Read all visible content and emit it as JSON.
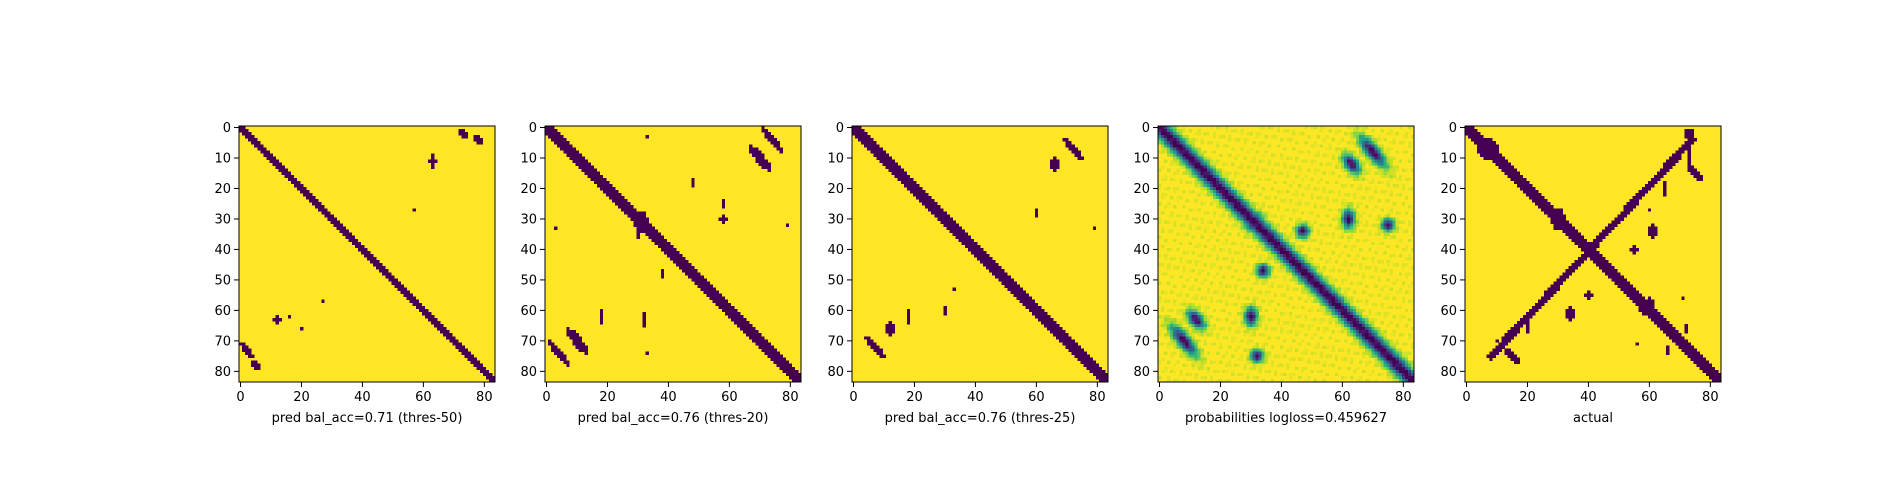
{
  "chart_data": [
    {
      "type": "heatmap",
      "title": "",
      "xlabel": "pred bal_acc=0.71 (thres-50)",
      "ylabel": "",
      "size": 84,
      "colormap": "binary-viridis",
      "colors": {
        "contact": "#440154",
        "no_contact": "#fde725"
      },
      "xticks": [
        0,
        20,
        40,
        60,
        80
      ],
      "yticks": [
        0,
        10,
        20,
        30,
        40,
        50,
        60,
        70,
        80
      ],
      "xlim": [
        -0.5,
        83.5
      ],
      "ylim": [
        83.5,
        -0.5
      ],
      "diag_half_width": 1.3,
      "blobs": [
        [
          73,
          2,
          3.5,
          1.2,
          0.7
        ],
        [
          78,
          5,
          3,
          1.2,
          0.7
        ],
        [
          63,
          12,
          2,
          1.4,
          0
        ],
        [
          62,
          16,
          1,
          1.2,
          0
        ],
        [
          66,
          20,
          0.8,
          0.8,
          0
        ],
        [
          57,
          27,
          0.6,
          0.6,
          0
        ],
        [
          11,
          63,
          2.5,
          1.3,
          0
        ],
        [
          2,
          73,
          2.5,
          1.2,
          0.7
        ],
        [
          4,
          78,
          2.5,
          1.2,
          0.7
        ],
        [
          27,
          57,
          0.6,
          0.6,
          0
        ]
      ]
    },
    {
      "type": "heatmap",
      "title": "",
      "xlabel": "pred bal_acc=0.76 (thres-20)",
      "ylabel": "",
      "size": 84,
      "colormap": "binary-viridis",
      "colors": {
        "contact": "#440154",
        "no_contact": "#fde725"
      },
      "xticks": [
        0,
        20,
        40,
        60,
        80
      ],
      "yticks": [
        0,
        10,
        20,
        30,
        40,
        50,
        60,
        70,
        80
      ],
      "xlim": [
        -0.5,
        83.5
      ],
      "ylim": [
        83.5,
        -0.5
      ],
      "diag_half_width": 2.4,
      "blobs": [
        [
          31,
          31,
          4,
          3,
          0
        ],
        [
          70,
          10,
          7,
          1.8,
          0.7
        ],
        [
          74,
          4,
          7,
          1.4,
          0.7
        ],
        [
          62,
          18,
          2.5,
          1.2,
          0
        ],
        [
          63,
          32,
          2.5,
          1.2,
          0
        ],
        [
          48,
          38,
          2,
          1.2,
          0
        ],
        [
          74,
          33,
          1.2,
          1,
          0
        ],
        [
          35,
          30,
          1.5,
          1,
          0
        ],
        [
          10,
          70,
          7,
          1.8,
          0.7
        ],
        [
          4,
          74,
          7,
          1.4,
          0.7
        ],
        [
          30,
          58,
          2,
          1.4,
          0
        ],
        [
          25,
          58,
          1.5,
          1,
          0
        ],
        [
          32,
          79,
          1,
          1,
          0
        ],
        [
          18,
          48,
          1.5,
          1,
          0
        ],
        [
          3,
          33,
          1,
          0.8,
          0
        ],
        [
          33,
          3,
          1,
          0.8,
          0
        ]
      ]
    },
    {
      "type": "heatmap",
      "title": "",
      "xlabel": "pred bal_acc=0.76 (thres-25)",
      "ylabel": "",
      "size": 84,
      "colormap": "binary-viridis",
      "colors": {
        "contact": "#440154",
        "no_contact": "#fde725"
      },
      "xticks": [
        0,
        20,
        40,
        60,
        80
      ],
      "yticks": [
        0,
        10,
        20,
        30,
        40,
        50,
        60,
        70,
        80
      ],
      "xlim": [
        -0.5,
        83.5
      ],
      "ylim": [
        83.5,
        -0.5
      ],
      "diag_half_width": 2.1,
      "blobs": [
        [
          30,
          30,
          3,
          2,
          0
        ],
        [
          72,
          7,
          6,
          1.5,
          0.7
        ],
        [
          66,
          12,
          3,
          1.5,
          0
        ],
        [
          62,
          18,
          2.5,
          1.2,
          0
        ],
        [
          60,
          30,
          2,
          1,
          0
        ],
        [
          7,
          72,
          6,
          1.5,
          0.7
        ],
        [
          12,
          66,
          3,
          1.5,
          0
        ],
        [
          28,
          60,
          2,
          1,
          0
        ],
        [
          33,
          79,
          1,
          1,
          0
        ],
        [
          53,
          33,
          1,
          0.8,
          0
        ]
      ]
    },
    {
      "type": "heatmap",
      "title": "",
      "xlabel": "probabilities logloss=0.459627",
      "ylabel": "",
      "size": 84,
      "colormap": "viridis",
      "vrange": [
        0,
        1
      ],
      "xticks": [
        0,
        20,
        40,
        60,
        80
      ],
      "yticks": [
        0,
        10,
        20,
        30,
        40,
        50,
        60,
        70,
        80
      ],
      "xlim": [
        -0.5,
        83.5
      ],
      "ylim": [
        83.5,
        -0.5
      ],
      "diag_half_width": 2.5,
      "blobs": [
        [
          63,
          12,
          3.5,
          2,
          0.7
        ],
        [
          70,
          8,
          6,
          2,
          0.7
        ],
        [
          62,
          30,
          3,
          2,
          0
        ],
        [
          75,
          32,
          2,
          2,
          0
        ],
        [
          47,
          34,
          2,
          2,
          0
        ],
        [
          12,
          63,
          3.5,
          2,
          0.7
        ],
        [
          8,
          70,
          6,
          2,
          0.7
        ],
        [
          30,
          62,
          3,
          2,
          0
        ],
        [
          32,
          75,
          2,
          2,
          0
        ],
        [
          34,
          47,
          2,
          2,
          0
        ],
        [
          31,
          31,
          3,
          3,
          0
        ]
      ]
    },
    {
      "type": "heatmap",
      "title": "",
      "xlabel": "actual",
      "ylabel": "",
      "size": 84,
      "colormap": "binary-viridis",
      "colors": {
        "contact": "#440154",
        "no_contact": "#fde725"
      },
      "xticks": [
        0,
        20,
        40,
        60,
        80
      ],
      "yticks": [
        0,
        10,
        20,
        30,
        40,
        50,
        60,
        70,
        80
      ],
      "xlim": [
        -0.5,
        83.5
      ],
      "ylim": [
        83.5,
        -0.5
      ],
      "diag_half_width": 1.8,
      "antidiag": {
        "from": [
          4,
          74
        ],
        "to": [
          75,
          8
        ],
        "half_width": 1.4
      },
      "blobs": [
        [
          30,
          30,
          4,
          3,
          0
        ],
        [
          59,
          59,
          3,
          3,
          0
        ],
        [
          7,
          7,
          4,
          4,
          0
        ],
        [
          46,
          46,
          3,
          2,
          0
        ],
        [
          75,
          15,
          4,
          1.5,
          0.7
        ],
        [
          65,
          20,
          3,
          1.2,
          0
        ],
        [
          61,
          34,
          2.5,
          1.5,
          0
        ],
        [
          55,
          40,
          1.5,
          1.5,
          0
        ],
        [
          58,
          60,
          3,
          2,
          0
        ],
        [
          70,
          10,
          1,
          1,
          0
        ],
        [
          15,
          75,
          4,
          1.5,
          0.7
        ],
        [
          20,
          65,
          3,
          1.2,
          0
        ],
        [
          34,
          61,
          2.5,
          1.5,
          0
        ],
        [
          40,
          55,
          1.5,
          1.5,
          0
        ],
        [
          2,
          73,
          2,
          2,
          0
        ],
        [
          10,
          73,
          4,
          1.2,
          0
        ],
        [
          27,
          60,
          1,
          1,
          0
        ],
        [
          66,
          72,
          2,
          1,
          0
        ],
        [
          73,
          66,
          2,
          1,
          0
        ],
        [
          71,
          56,
          1,
          1,
          0
        ],
        [
          56,
          71,
          1,
          1,
          0
        ]
      ]
    }
  ]
}
